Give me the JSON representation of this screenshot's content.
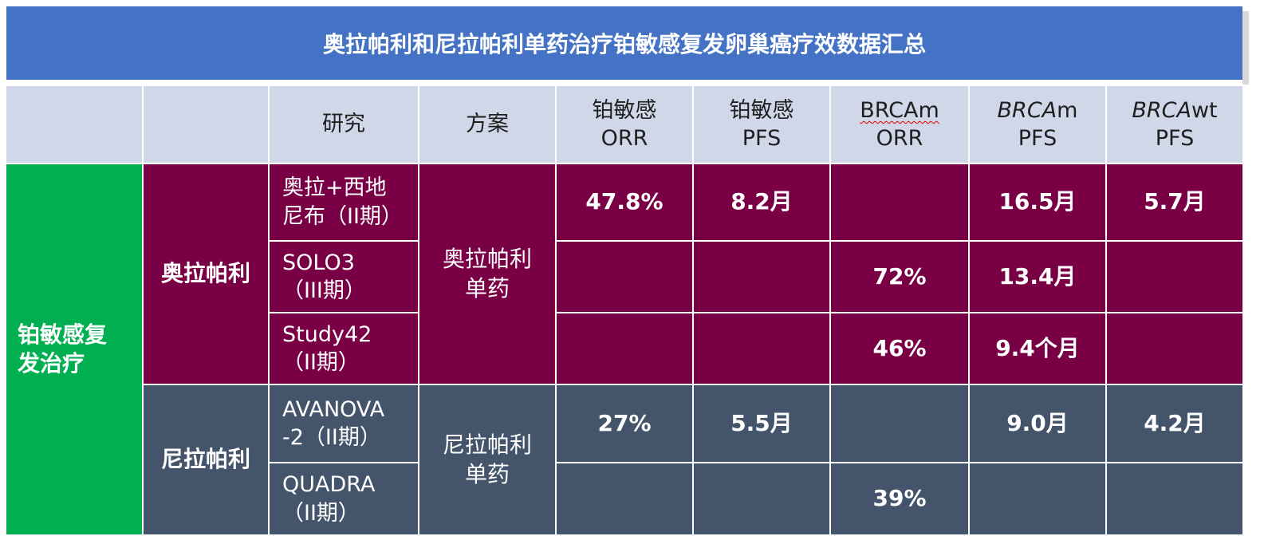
{
  "title": "奥拉帕利和尼拉帕利单药治疗铂敏感复发卵巢癌疗效数据汇总",
  "colors": {
    "banner": "#4472c4",
    "header": "#d0d7e8",
    "olaparib": "#7a0046",
    "niraparib": "#44546a",
    "category": "#00b050"
  },
  "headers": {
    "study": "研究",
    "plan": "方案",
    "col3_line1": "铂敏感",
    "col3_line2": "ORR",
    "col4_line1": "铂敏感",
    "col4_line2": "PFS",
    "col5_line1": "BRCAm",
    "col5_line2": "ORR",
    "col6_italic": "BRCA",
    "col6_rest": "m",
    "col6_line2": "PFS",
    "col7_italic": "BRCA",
    "col7_rest": "wt",
    "col7_line2": "PFS"
  },
  "category_line1": "铂敏感复",
  "category_line2": "发治疗",
  "groups": {
    "olaparib": {
      "name": "奥拉帕利",
      "plan_line1": "奥拉帕利",
      "plan_line2": "单药"
    },
    "niraparib": {
      "name": "尼拉帕利",
      "plan_line1": "尼拉帕利",
      "plan_line2": "单药"
    }
  },
  "rows": [
    {
      "study_line1": "奥拉+西地",
      "study_line2": "尼布（II期）",
      "ps_orr": "47.8%",
      "ps_pfs": "8.2月",
      "brcam_orr": "",
      "brcam_pfs": "16.5月",
      "brcawt_pfs": "5.7月"
    },
    {
      "study_line1": "SOLO3",
      "study_line2": "（III期）",
      "ps_orr": "",
      "ps_pfs": "",
      "brcam_orr": "72%",
      "brcam_pfs": "13.4月",
      "brcawt_pfs": ""
    },
    {
      "study_line1": "Study42",
      "study_line2": "（II期）",
      "ps_orr": "",
      "ps_pfs": "",
      "brcam_orr": "46%",
      "brcam_pfs": "9.4个月",
      "brcawt_pfs": ""
    },
    {
      "study_line1": "AVANOVA",
      "study_line2": "-2（II期）",
      "ps_orr": "27%",
      "ps_pfs": "5.5月",
      "brcam_orr": "",
      "brcam_pfs": "9.0月",
      "brcawt_pfs": "4.2月"
    },
    {
      "study_line1": "QUADRA",
      "study_line2": "（II期）",
      "ps_orr": "",
      "ps_pfs": "",
      "brcam_orr": "39%",
      "brcam_pfs": "",
      "brcawt_pfs": ""
    }
  ]
}
